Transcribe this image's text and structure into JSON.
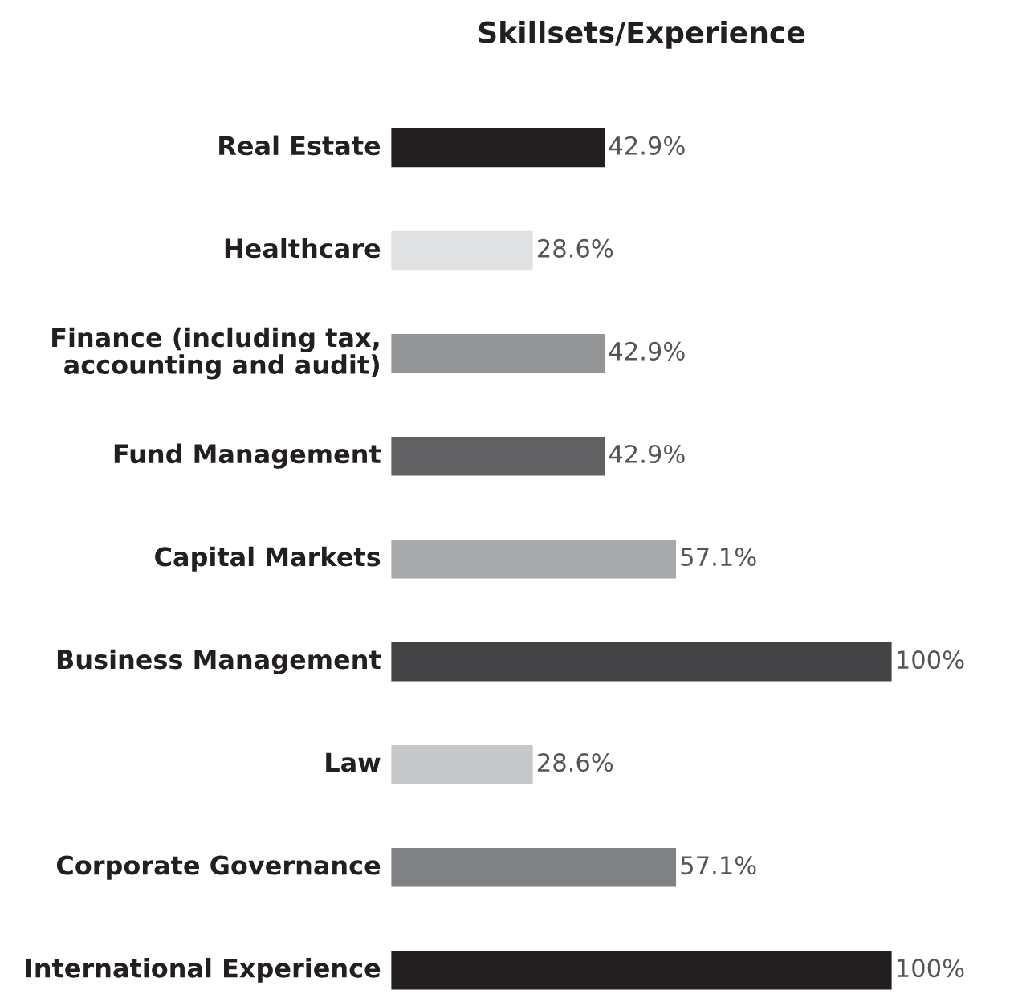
{
  "chart_data": {
    "type": "bar",
    "orientation": "horizontal",
    "title": "Skillsets/Experience",
    "categories": [
      "Real Estate",
      "Healthcare",
      "Finance (including tax, accounting and audit)",
      "Fund Management",
      "Capital Markets",
      "Business Management",
      "Law",
      "Corporate Governance",
      "International Experience"
    ],
    "values": [
      42.9,
      28.6,
      42.9,
      42.9,
      57.1,
      100,
      28.6,
      57.1,
      100
    ],
    "value_labels": [
      "42.9%",
      "28.6%",
      "42.9%",
      "42.9%",
      "57.1%",
      "100%",
      "28.6%",
      "57.1%",
      "100%"
    ],
    "colors": [
      "#231f20",
      "#e0e1e3",
      "#949597",
      "#626264",
      "#a8a9ab",
      "#444446",
      "#c6c7c9",
      "#808184",
      "#231f20"
    ]
  }
}
